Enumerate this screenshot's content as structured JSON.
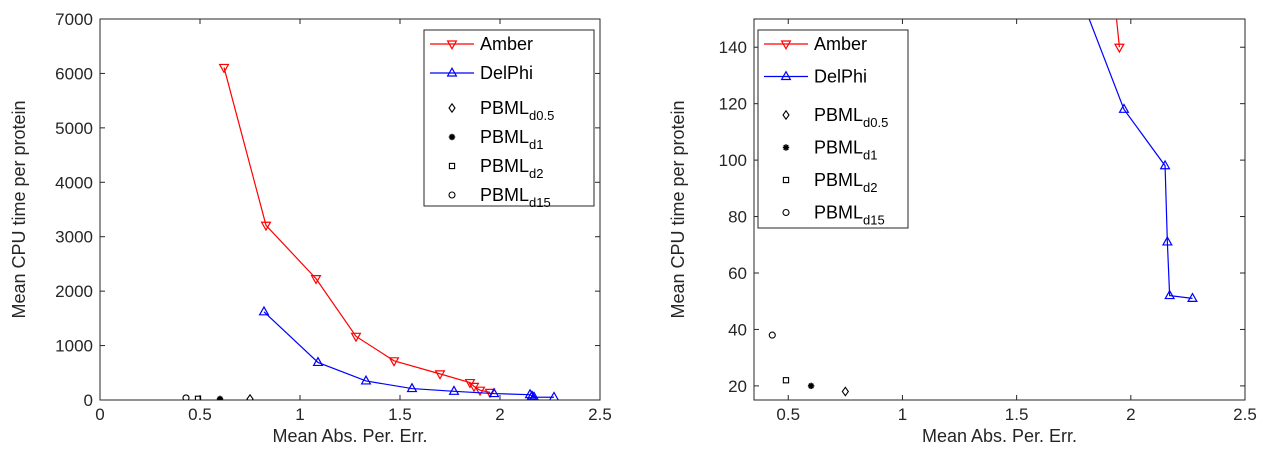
{
  "chart_data": [
    {
      "type": "line",
      "xlabel": "Mean Abs. Per. Err.",
      "ylabel": "Mean CPU time per protein",
      "xlim": [
        0,
        2.5
      ],
      "ylim": [
        0,
        7000
      ],
      "xticks": [
        0,
        0.5,
        1,
        1.5,
        2,
        2.5
      ],
      "xtick_labels": [
        "0",
        "0.5",
        "1",
        "1.5",
        "2",
        "2.5"
      ],
      "yticks": [
        0,
        1000,
        2000,
        3000,
        4000,
        5000,
        6000,
        7000
      ],
      "ytick_labels": [
        "0",
        "1000",
        "2000",
        "3000",
        "4000",
        "5000",
        "6000",
        "7000"
      ],
      "grid": false,
      "legend_position": "top-right",
      "series": [
        {
          "name": "Amber",
          "color": "#ff0000",
          "marker": "triangle-down",
          "line": true,
          "x": [
            0.62,
            0.83,
            1.08,
            1.28,
            1.47,
            1.7,
            1.85,
            1.87,
            1.9,
            1.95
          ],
          "y": [
            6110,
            3210,
            2230,
            1170,
            720,
            480,
            320,
            250,
            180,
            140
          ]
        },
        {
          "name": "DelPhi",
          "color": "#0000ff",
          "marker": "triangle-up",
          "line": true,
          "x": [
            0.82,
            1.09,
            1.33,
            1.56,
            1.77,
            1.97,
            2.15,
            2.16,
            2.17,
            2.27
          ],
          "y": [
            1620,
            690,
            350,
            210,
            160,
            118,
            98,
            71,
            52,
            51
          ]
        },
        {
          "name": "PBML",
          "subscript": "d0.5",
          "color": "#000000",
          "marker": "diamond",
          "line": false,
          "x": [
            0.75
          ],
          "y": [
            18
          ]
        },
        {
          "name": "PBML",
          "subscript": "d1",
          "color": "#000000",
          "marker": "star",
          "line": false,
          "x": [
            0.6
          ],
          "y": [
            20
          ]
        },
        {
          "name": "PBML",
          "subscript": "d2",
          "color": "#000000",
          "marker": "square",
          "line": false,
          "x": [
            0.49
          ],
          "y": [
            22
          ]
        },
        {
          "name": "PBML",
          "subscript": "d15",
          "color": "#000000",
          "marker": "circle",
          "line": false,
          "x": [
            0.43
          ],
          "y": [
            38
          ]
        }
      ]
    },
    {
      "type": "line",
      "xlabel": "Mean Abs. Per. Err.",
      "ylabel": "Mean CPU time per protein",
      "xlim": [
        0.35,
        2.5
      ],
      "ylim": [
        15,
        150
      ],
      "xticks": [
        0.5,
        1,
        1.5,
        2,
        2.5
      ],
      "xtick_labels": [
        "0.5",
        "1",
        "1.5",
        "2",
        "2.5"
      ],
      "yticks": [
        20,
        40,
        60,
        80,
        100,
        120,
        140
      ],
      "ytick_labels": [
        "20",
        "40",
        "60",
        "80",
        "100",
        "120",
        "140"
      ],
      "grid": false,
      "legend_position": "top-left",
      "series": [
        {
          "name": "Amber",
          "color": "#ff0000",
          "marker": "triangle-down",
          "line": true,
          "x": [
            1.9,
            1.95
          ],
          "y": [
            180,
            140
          ]
        },
        {
          "name": "DelPhi",
          "color": "#0000ff",
          "marker": "triangle-up",
          "line": true,
          "x": [
            1.77,
            1.97,
            2.15,
            2.16,
            2.17,
            2.27
          ],
          "y": [
            160,
            118,
            98,
            71,
            52,
            51
          ]
        },
        {
          "name": "PBML",
          "subscript": "d0.5",
          "color": "#000000",
          "marker": "diamond",
          "line": false,
          "x": [
            0.75
          ],
          "y": [
            18
          ]
        },
        {
          "name": "PBML",
          "subscript": "d1",
          "color": "#000000",
          "marker": "star",
          "line": false,
          "x": [
            0.6
          ],
          "y": [
            20
          ]
        },
        {
          "name": "PBML",
          "subscript": "d2",
          "color": "#000000",
          "marker": "square",
          "line": false,
          "x": [
            0.49
          ],
          "y": [
            22
          ]
        },
        {
          "name": "PBML",
          "subscript": "d15",
          "color": "#000000",
          "marker": "circle",
          "line": false,
          "x": [
            0.43
          ],
          "y": [
            38
          ]
        }
      ]
    }
  ]
}
